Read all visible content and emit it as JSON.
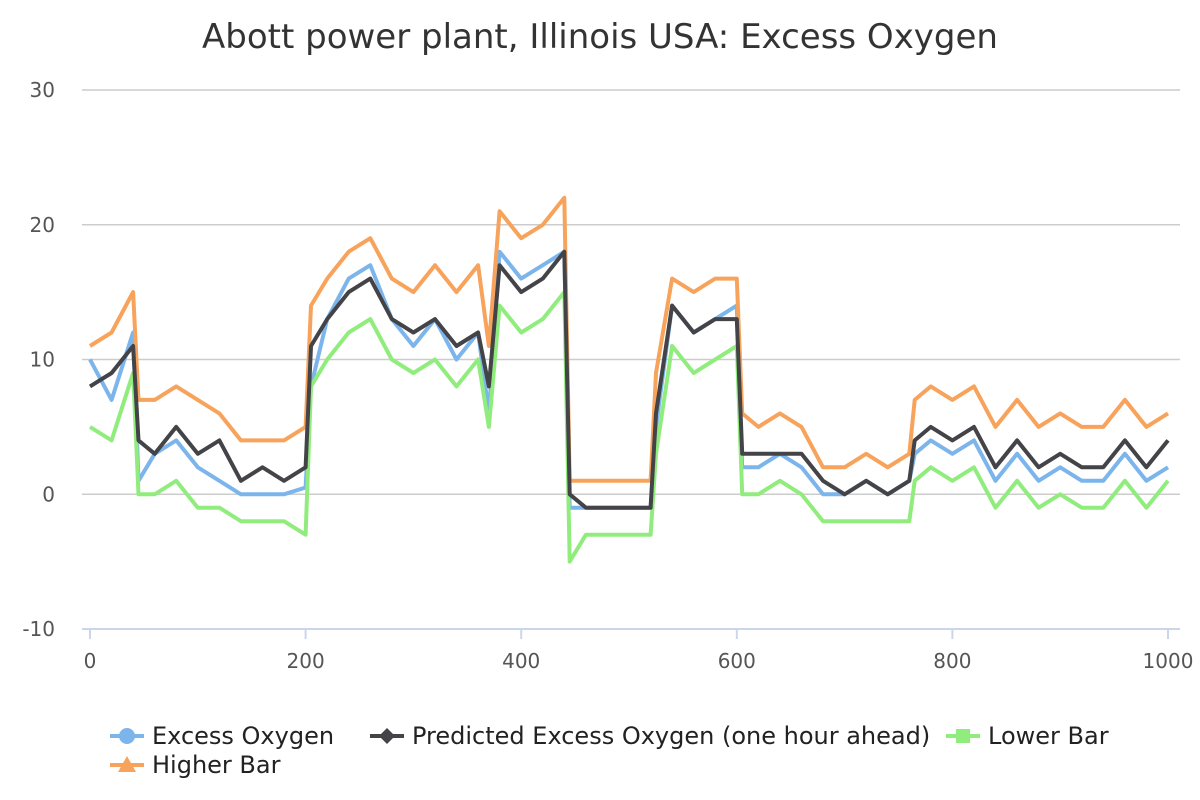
{
  "chart_data": {
    "type": "line",
    "title": "Abott power plant, Illinois USA: Excess Oxygen",
    "xlabel": "",
    "ylabel": "",
    "xlim": [
      0,
      1000
    ],
    "ylim": [
      -10,
      30
    ],
    "x_ticks": [
      0,
      200,
      400,
      600,
      800,
      1000
    ],
    "y_ticks": [
      -10,
      0,
      10,
      20,
      30
    ],
    "grid": true,
    "legend_position": "bottom",
    "series": [
      {
        "name": "Excess Oxygen",
        "color": "#7cb5ec",
        "marker": "circle",
        "x": [
          0,
          20,
          40,
          45,
          60,
          80,
          100,
          120,
          140,
          160,
          180,
          200,
          205,
          220,
          240,
          260,
          280,
          300,
          320,
          340,
          360,
          370,
          380,
          400,
          420,
          440,
          445,
          460,
          480,
          500,
          520,
          525,
          540,
          560,
          580,
          600,
          605,
          620,
          640,
          660,
          680,
          700,
          720,
          740,
          760,
          765,
          780,
          800,
          820,
          840,
          860,
          880,
          900,
          920,
          940,
          960,
          980,
          1000
        ],
        "y": [
          10,
          7,
          12,
          1,
          3,
          4,
          2,
          1,
          0,
          0,
          0,
          0.5,
          8,
          13,
          16,
          17,
          13,
          11,
          13,
          10,
          12,
          6,
          18,
          16,
          17,
          18,
          -1,
          -1,
          -1,
          -1,
          -1,
          5,
          14,
          12,
          13,
          14,
          2,
          2,
          3,
          2,
          0,
          0,
          1,
          0,
          1,
          3,
          4,
          3,
          4,
          1,
          3,
          1,
          2,
          1,
          1,
          3,
          1,
          2
        ]
      },
      {
        "name": "Predicted Excess Oxygen (one hour ahead)",
        "color": "#434348",
        "marker": "diamond",
        "x": [
          0,
          20,
          40,
          45,
          60,
          80,
          100,
          120,
          140,
          160,
          180,
          200,
          205,
          220,
          240,
          260,
          280,
          300,
          320,
          340,
          360,
          370,
          380,
          400,
          420,
          440,
          445,
          460,
          480,
          500,
          520,
          525,
          540,
          560,
          580,
          600,
          605,
          620,
          640,
          660,
          680,
          700,
          720,
          740,
          760,
          765,
          780,
          800,
          820,
          840,
          860,
          880,
          900,
          920,
          940,
          960,
          980,
          1000
        ],
        "y": [
          8,
          9,
          11,
          4,
          3,
          5,
          3,
          4,
          1,
          2,
          1,
          2,
          11,
          13,
          15,
          16,
          13,
          12,
          13,
          11,
          12,
          8,
          17,
          15,
          16,
          18,
          0,
          -1,
          -1,
          -1,
          -1,
          6,
          14,
          12,
          13,
          13,
          3,
          3,
          3,
          3,
          1,
          0,
          1,
          0,
          1,
          4,
          5,
          4,
          5,
          2,
          4,
          2,
          3,
          2,
          2,
          4,
          2,
          4
        ]
      },
      {
        "name": "Lower Bar",
        "color": "#90ed7d",
        "marker": "square",
        "x": [
          0,
          20,
          40,
          45,
          60,
          80,
          100,
          120,
          140,
          160,
          180,
          200,
          205,
          220,
          240,
          260,
          280,
          300,
          320,
          340,
          360,
          370,
          380,
          400,
          420,
          440,
          445,
          460,
          480,
          500,
          520,
          525,
          540,
          560,
          580,
          600,
          605,
          620,
          640,
          660,
          680,
          700,
          720,
          740,
          760,
          765,
          780,
          800,
          820,
          840,
          860,
          880,
          900,
          920,
          940,
          960,
          980,
          1000
        ],
        "y": [
          5,
          4,
          9,
          0,
          0,
          1,
          -1,
          -1,
          -2,
          -2,
          -2,
          -3,
          8,
          10,
          12,
          13,
          10,
          9,
          10,
          8,
          10,
          5,
          14,
          12,
          13,
          15,
          -5,
          -3,
          -3,
          -3,
          -3,
          3,
          11,
          9,
          10,
          11,
          0,
          0,
          1,
          0,
          -2,
          -2,
          -2,
          -2,
          -2,
          1,
          2,
          1,
          2,
          -1,
          1,
          -1,
          0,
          -1,
          -1,
          1,
          -1,
          1
        ]
      },
      {
        "name": "Higher Bar",
        "color": "#f7a35c",
        "marker": "triangle",
        "x": [
          0,
          20,
          40,
          45,
          60,
          80,
          100,
          120,
          140,
          160,
          180,
          200,
          205,
          220,
          240,
          260,
          280,
          300,
          320,
          340,
          360,
          370,
          380,
          400,
          420,
          440,
          445,
          460,
          480,
          500,
          520,
          525,
          540,
          560,
          580,
          600,
          605,
          620,
          640,
          660,
          680,
          700,
          720,
          740,
          760,
          765,
          780,
          800,
          820,
          840,
          860,
          880,
          900,
          920,
          940,
          960,
          980,
          1000
        ],
        "y": [
          11,
          12,
          15,
          7,
          7,
          8,
          7,
          6,
          4,
          4,
          4,
          5,
          14,
          16,
          18,
          19,
          16,
          15,
          17,
          15,
          17,
          11,
          21,
          19,
          20,
          22,
          1,
          1,
          1,
          1,
          1,
          9,
          16,
          15,
          16,
          16,
          6,
          5,
          6,
          5,
          2,
          2,
          3,
          2,
          3,
          7,
          8,
          7,
          8,
          5,
          7,
          5,
          6,
          5,
          5,
          7,
          5,
          6
        ]
      }
    ]
  }
}
